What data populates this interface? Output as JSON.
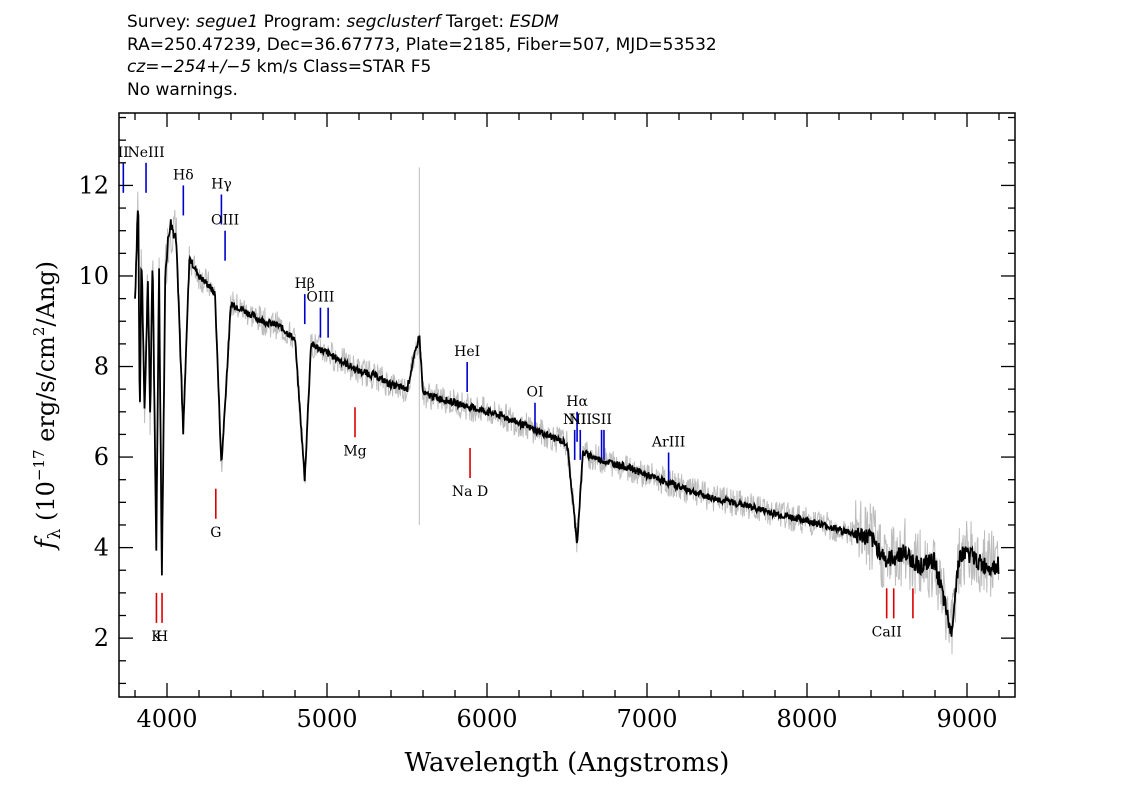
{
  "header": {
    "survey_label": "Survey:",
    "survey": "segue1",
    "program_label": "Program:",
    "program": "segclusterf",
    "target_label": "Target:",
    "target": "ESDM",
    "line2": "RA=250.47239, Dec=36.67773, Plate=2185, Fiber=507, MJD=53532",
    "cz_label": "cz=",
    "cz_value": "−254+/−5",
    "cz_unit": "km/s",
    "class_text": "Class=STAR F5",
    "warnings": "No warnings."
  },
  "chart_data": {
    "type": "line",
    "title": "",
    "xlabel": "Wavelength (Angstroms)",
    "ylabel": "f_λ (10^-17 erg/s/cm^2/Ang)",
    "xlim": [
      3700,
      9300
    ],
    "ylim": [
      0.7,
      13.6
    ],
    "x_ticks": [
      4000,
      5000,
      6000,
      7000,
      8000,
      9000
    ],
    "y_ticks": [
      2,
      4,
      6,
      8,
      10,
      12
    ],
    "grid": false,
    "colors": {
      "spectrum": "#000000",
      "noise": "#bdbdbd",
      "emission": "#0000cc",
      "absorption": "#dd0000"
    },
    "series": [
      {
        "style": "smoothed",
        "x": [
          3800,
          3820,
          3830,
          3840,
          3860,
          3880,
          3895,
          3910,
          3933,
          3950,
          3968,
          3990,
          4020,
          4060,
          4101,
          4140,
          4200,
          4260,
          4300,
          4340,
          4400,
          4450,
          4500,
          4600,
          4700,
          4800,
          4861,
          4900,
          5000,
          5100,
          5200,
          5300,
          5400,
          5500,
          5577,
          5600,
          5700,
          5800,
          5900,
          6000,
          6100,
          6200,
          6300,
          6400,
          6500,
          6563,
          6600,
          6700,
          6800,
          6900,
          7000,
          7200,
          7400,
          7600,
          7800,
          8000,
          8200,
          8400,
          8500,
          8600,
          8700,
          8800,
          8900,
          8950,
          9000,
          9100,
          9200
        ],
        "y": [
          9.5,
          11.8,
          6.6,
          10.6,
          7.0,
          10.0,
          6.9,
          10.5,
          3.8,
          10.3,
          3.4,
          10.2,
          11.2,
          10.8,
          6.5,
          10.4,
          10.0,
          9.8,
          9.6,
          5.8,
          9.4,
          9.3,
          9.2,
          9.0,
          8.9,
          8.6,
          5.5,
          8.5,
          8.3,
          8.1,
          7.9,
          7.8,
          7.6,
          7.5,
          8.7,
          7.4,
          7.3,
          7.2,
          7.1,
          7.0,
          6.9,
          6.75,
          6.6,
          6.45,
          6.3,
          4.1,
          6.1,
          5.95,
          5.85,
          5.75,
          5.6,
          5.35,
          5.1,
          4.95,
          4.75,
          4.6,
          4.4,
          4.2,
          3.7,
          3.9,
          3.6,
          3.7,
          2.1,
          3.8,
          3.9,
          3.6,
          3.6
        ]
      }
    ],
    "line_labels": [
      {
        "label": "II",
        "x": 3727,
        "kind": "emission",
        "y": 12.5
      },
      {
        "label": "NeIII",
        "x": 3869,
        "kind": "emission",
        "y": 12.5
      },
      {
        "label": "Hδ",
        "x": 4102,
        "kind": "emission",
        "y": 12.0
      },
      {
        "label": "Hγ",
        "x": 4340,
        "kind": "emission",
        "y": 11.8
      },
      {
        "label": "OIII",
        "x": 4363,
        "kind": "emission",
        "y": 11.0
      },
      {
        "label": "Hβ",
        "x": 4861,
        "kind": "emission",
        "y": 9.6
      },
      {
        "label": "OIII",
        "x": 4959,
        "kind": "emission",
        "y": 9.3
      },
      {
        "label": "",
        "x": 5007,
        "kind": "emission",
        "y": 9.3
      },
      {
        "label": "HeI",
        "x": 5876,
        "kind": "emission",
        "y": 8.1
      },
      {
        "label": "OI",
        "x": 6300,
        "kind": "emission",
        "y": 7.2
      },
      {
        "label": "NII",
        "x": 6548,
        "kind": "emission",
        "y": 6.6
      },
      {
        "label": "Hα",
        "x": 6563,
        "kind": "emission",
        "y": 7.0
      },
      {
        "label": "NII",
        "x": 6583,
        "kind": "emission",
        "y": 6.6
      },
      {
        "label": "SII",
        "x": 6716,
        "kind": "emission",
        "y": 6.6
      },
      {
        "label": "",
        "x": 6731,
        "kind": "emission",
        "y": 6.6
      },
      {
        "label": "ArIII",
        "x": 7135,
        "kind": "emission",
        "y": 6.1
      },
      {
        "label": "K",
        "x": 3934,
        "kind": "absorption",
        "y": 3.0
      },
      {
        "label": "H",
        "x": 3969,
        "kind": "absorption",
        "y": 3.0
      },
      {
        "label": "G",
        "x": 4305,
        "kind": "absorption",
        "y": 5.3
      },
      {
        "label": "Mg",
        "x": 5175,
        "kind": "absorption",
        "y": 7.1
      },
      {
        "label": "Na D",
        "x": 5894,
        "kind": "absorption",
        "y": 6.2
      },
      {
        "label": "CaII",
        "x": 8498,
        "kind": "absorption",
        "y": 3.1
      },
      {
        "label": "",
        "x": 8542,
        "kind": "absorption",
        "y": 3.1
      },
      {
        "label": "",
        "x": 8662,
        "kind": "absorption",
        "y": 3.1
      }
    ]
  }
}
